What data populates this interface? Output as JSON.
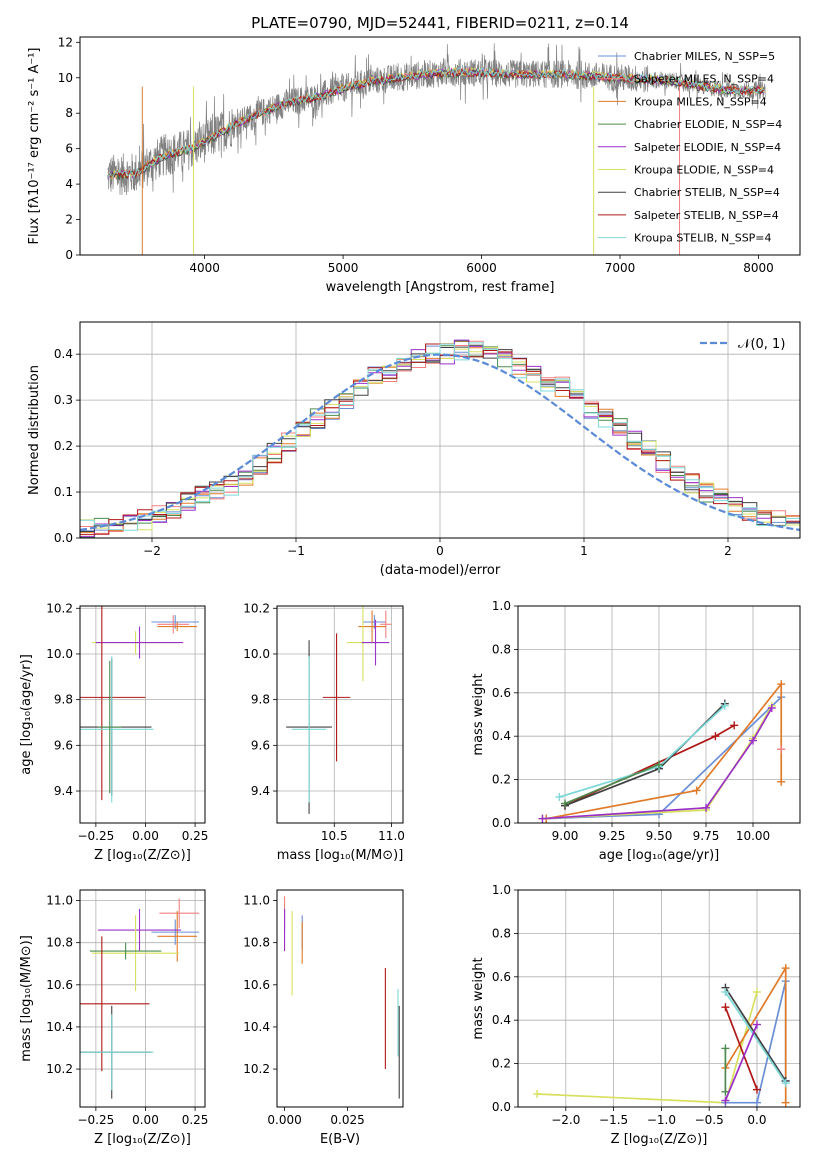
{
  "figure_title": "PLATE=0790, MJD=52441, FIBERID=0211, z=0.14",
  "colors": {
    "chabrier_miles": "#6b8fd6",
    "salpeter_miles": "#f28080",
    "kroupa_miles": "#e07b2a",
    "chabrier_elodie": "#4e8a4e",
    "salpeter_elodie": "#9b30c8",
    "kroupa_elodie": "#d8e060",
    "chabrier_stelib": "#404040",
    "salpeter_stelib": "#b01818",
    "kroupa_stelib": "#7fd8d8",
    "data": "#808080",
    "normal": "#5b8ad6"
  },
  "chart_data": [
    {
      "id": "spectrum",
      "type": "line",
      "title": "PLATE=0790, MJD=52441, FIBERID=0211, z=0.14",
      "xlabel": "wavelength [Angstrom, rest frame]",
      "ylabel": "Flux [fλ10⁻¹⁷ erg cm⁻² s⁻¹ A⁻¹]",
      "xlim": [
        3100,
        8300
      ],
      "ylim": [
        0,
        12.3
      ],
      "xticks": [
        "4000",
        "5000",
        "6000",
        "7000",
        "8000"
      ],
      "yticks": [
        "0",
        "2",
        "4",
        "6",
        "8",
        "10",
        "12"
      ],
      "grid": false,
      "legend_position": "right",
      "legend": [
        {
          "key": "chabrier_miles",
          "label": "Chabrier MILES, N_SSP=5"
        },
        {
          "key": "salpeter_miles",
          "label": "Salpeter MILES, N_SSP=4"
        },
        {
          "key": "kroupa_miles",
          "label": "Kroupa MILES, N_SSP=4"
        },
        {
          "key": "chabrier_elodie",
          "label": "Chabrier ELODIE, N_SSP=4"
        },
        {
          "key": "salpeter_elodie",
          "label": "Salpeter ELODIE, N_SSP=4"
        },
        {
          "key": "kroupa_elodie",
          "label": "Kroupa ELODIE, N_SSP=4"
        },
        {
          "key": "chabrier_stelib",
          "label": "Chabrier STELIB, N_SSP=4"
        },
        {
          "key": "salpeter_stelib",
          "label": "Salpeter STELIB, N_SSP=4"
        },
        {
          "key": "kroupa_stelib",
          "label": "Kroupa STELIB, N_SSP=4"
        }
      ],
      "continuum": {
        "x": [
          3300,
          3500,
          3700,
          3900,
          4000,
          4200,
          4400,
          4600,
          4800,
          5000,
          5200,
          5400,
          5600,
          5800,
          6000,
          6200,
          6400,
          6600,
          6800,
          7000,
          7200,
          7400,
          7600,
          7800,
          8050
        ],
        "y": [
          4.5,
          4.6,
          5.6,
          6.0,
          6.4,
          7.3,
          8.0,
          8.6,
          8.9,
          9.4,
          9.8,
          10.0,
          10.2,
          10.3,
          10.3,
          10.2,
          10.2,
          10.2,
          10.1,
          10.0,
          9.9,
          9.8,
          9.5,
          9.3,
          9.3
        ]
      },
      "spike_lines": [
        {
          "x": 3550,
          "key": "kroupa_miles"
        },
        {
          "x": 3920,
          "key": "kroupa_elodie"
        },
        {
          "x": 6810,
          "key": "kroupa_elodie"
        },
        {
          "x": 7430,
          "key": "salpeter_miles"
        }
      ]
    },
    {
      "id": "residuals",
      "type": "histogram",
      "xlabel": "(data-model)/error",
      "ylabel": "Normed distribution",
      "xlim": [
        -2.5,
        2.5
      ],
      "ylim": [
        0,
        0.47
      ],
      "xticks": [
        -2,
        -1,
        0,
        1,
        2
      ],
      "yticks": [
        0.0,
        0.1,
        0.2,
        0.3,
        0.4
      ],
      "xtick_labels": [
        "−2",
        "−1",
        "0",
        "1",
        "2"
      ],
      "ytick_labels": [
        "0.0",
        "0.1",
        "0.2",
        "0.3",
        "0.4"
      ],
      "grid": true,
      "legend_position": "top-right",
      "legend_label": "𝒩(0, 1)",
      "bin_width": 0.1,
      "base_values": [
        0.02,
        0.025,
        0.03,
        0.035,
        0.04,
        0.05,
        0.065,
        0.08,
        0.09,
        0.1,
        0.115,
        0.135,
        0.16,
        0.185,
        0.21,
        0.235,
        0.26,
        0.28,
        0.3,
        0.33,
        0.35,
        0.36,
        0.38,
        0.39,
        0.4,
        0.4,
        0.41,
        0.41,
        0.4,
        0.39,
        0.37,
        0.36,
        0.34,
        0.33,
        0.31,
        0.28,
        0.26,
        0.24,
        0.215,
        0.19,
        0.165,
        0.14,
        0.12,
        0.1,
        0.085,
        0.07,
        0.055,
        0.045,
        0.04,
        0.035
      ],
      "normal_curve": {
        "mu": 0,
        "sigma": 1
      }
    },
    {
      "id": "z_age",
      "type": "scatter",
      "xlabel": "Z [log₁₀(Z/Z⊙)]",
      "ylabel": "age  [log₁₀(age/yr)]",
      "xlim": [
        -0.33,
        0.3
      ],
      "ylim": [
        9.26,
        10.21
      ],
      "xticks": [
        -0.25,
        0.0,
        0.25
      ],
      "yticks": [
        9.4,
        9.6,
        9.8,
        10.0,
        10.2
      ],
      "xtick_labels": [
        "−0.25",
        "0.00",
        "0.25"
      ],
      "ytick_labels": [
        "9.4",
        "9.6",
        "9.8",
        "10.0",
        "10.2"
      ],
      "grid": true,
      "errorbars": [
        {
          "key": "chabrier_miles",
          "x": 0.15,
          "y": 10.14,
          "xerr": 0.12,
          "yerr": 0.03
        },
        {
          "key": "kroupa_miles",
          "x": 0.16,
          "y": 10.12,
          "xerr": 0.1,
          "yerr": 0.02
        },
        {
          "key": "salpeter_miles",
          "x": 0.14,
          "y": 10.13,
          "xerr": 0.08,
          "yerr": 0.04
        },
        {
          "key": "kroupa_elodie",
          "x": -0.05,
          "y": 10.05,
          "xerr": 0.22,
          "yerr": 0.05
        },
        {
          "key": "salpeter_elodie",
          "x": -0.03,
          "y": 10.05,
          "xerr": 0.22,
          "yerr": 0.07
        },
        {
          "key": "salpeter_stelib",
          "x": -0.22,
          "y": 9.81,
          "xerr": 0.22,
          "yerr": 0.45
        },
        {
          "key": "chabrier_stelib",
          "x": -0.17,
          "y": 9.68,
          "xerr": 0.2,
          "yerr": 0.3
        },
        {
          "key": "kroupa_stelib",
          "x": -0.17,
          "y": 9.67,
          "xerr": 0.21,
          "yerr": 0.32
        },
        {
          "key": "chabrier_elodie",
          "x": -0.18,
          "y": 9.68,
          "xerr": 0.06,
          "yerr": 0.29
        }
      ]
    },
    {
      "id": "mass_age",
      "type": "scatter",
      "xlabel": "mass [log₁₀(M/M⊙)]",
      "ylabel": "",
      "xlim": [
        10.0,
        11.1
      ],
      "ylim": [
        9.26,
        10.21
      ],
      "xticks": [
        10.5,
        11.0
      ],
      "yticks": [
        9.4,
        9.6,
        9.8,
        10.0,
        10.2
      ],
      "xtick_labels": [
        "10.5",
        "11.0"
      ],
      "ytick_labels": [
        "9.4",
        "9.6",
        "9.8",
        "10.0",
        "10.2"
      ],
      "grid": true,
      "errorbars": [
        {
          "key": "chabrier_miles",
          "x": 10.85,
          "y": 10.14,
          "xerr": 0.1,
          "yerr": 0.03
        },
        {
          "key": "salpeter_miles",
          "x": 10.95,
          "y": 10.13,
          "xerr": 0.05,
          "yerr": 0.06
        },
        {
          "key": "kroupa_miles",
          "x": 10.83,
          "y": 10.12,
          "xerr": 0.12,
          "yerr": 0.07
        },
        {
          "key": "kroupa_elodie",
          "x": 10.75,
          "y": 10.05,
          "xerr": 0.14,
          "yerr": 0.17
        },
        {
          "key": "salpeter_elodie",
          "x": 10.86,
          "y": 10.05,
          "xerr": 0.12,
          "yerr": 0.1
        },
        {
          "key": "salpeter_stelib",
          "x": 10.52,
          "y": 9.81,
          "xerr": 0.12,
          "yerr": 0.28
        },
        {
          "key": "chabrier_stelib",
          "x": 10.28,
          "y": 9.68,
          "xerr": 0.2,
          "yerr": 0.38
        },
        {
          "key": "kroupa_stelib",
          "x": 10.28,
          "y": 9.67,
          "xerr": 0.15,
          "yerr": 0.32
        }
      ]
    },
    {
      "id": "age_weight",
      "type": "line",
      "xlabel": "age  [log₁₀(age/yr)]",
      "ylabel": "mass weight",
      "xlim": [
        8.75,
        10.25
      ],
      "ylim": [
        0,
        1.0
      ],
      "xticks": [
        9.0,
        9.25,
        9.5,
        9.75,
        10.0
      ],
      "yticks": [
        0.0,
        0.2,
        0.4,
        0.6,
        0.8,
        1.0
      ],
      "xtick_labels": [
        "9.00",
        "9.25",
        "9.50",
        "9.75",
        "10.00"
      ],
      "ytick_labels": [
        "0.0",
        "0.2",
        "0.4",
        "0.6",
        "0.8",
        "1.0"
      ],
      "grid": true,
      "series": [
        {
          "key": "chabrier_miles",
          "x": [
            8.9,
            9.5,
            10.15
          ],
          "y": [
            0.02,
            0.04,
            0.58
          ]
        },
        {
          "key": "kroupa_miles",
          "x": [
            8.9,
            9.7,
            10.15,
            10.15
          ],
          "y": [
            0.02,
            0.15,
            0.64,
            0.19
          ]
        },
        {
          "key": "salpeter_stelib",
          "x": [
            9.0,
            9.8,
            9.9
          ],
          "y": [
            0.08,
            0.4,
            0.45
          ]
        },
        {
          "key": "chabrier_stelib",
          "x": [
            9.0,
            9.5,
            9.85
          ],
          "y": [
            0.08,
            0.25,
            0.55
          ]
        },
        {
          "key": "kroupa_stelib",
          "x": [
            8.97,
            9.5,
            9.85
          ],
          "y": [
            0.12,
            0.26,
            0.54
          ]
        },
        {
          "key": "chabrier_elodie",
          "x": [
            9.0,
            9.5
          ],
          "y": [
            0.09,
            0.27
          ]
        },
        {
          "key": "kroupa_elodie",
          "x": [
            8.88,
            9.75,
            10.0,
            10.1
          ],
          "y": [
            0.02,
            0.06,
            0.39,
            0.54
          ]
        },
        {
          "key": "salpeter_elodie",
          "x": [
            8.88,
            9.75,
            10.0,
            10.1
          ],
          "y": [
            0.02,
            0.07,
            0.38,
            0.53
          ]
        },
        {
          "key": "salpeter_miles",
          "x": [
            10.15
          ],
          "y": [
            0.34
          ]
        }
      ]
    },
    {
      "id": "z_mass",
      "type": "scatter",
      "xlabel": "Z [log₁₀(Z/Z⊙)]",
      "ylabel": "mass [log₁₀(M/M⊙)]",
      "xlim": [
        -0.33,
        0.3
      ],
      "ylim": [
        10.02,
        11.05
      ],
      "xticks": [
        -0.25,
        0.0,
        0.25
      ],
      "yticks": [
        10.2,
        10.4,
        10.6,
        10.8,
        11.0
      ],
      "xtick_labels": [
        "−0.25",
        "0.00",
        "0.25"
      ],
      "ytick_labels": [
        "10.2",
        "10.4",
        "10.6",
        "10.8",
        "11.0"
      ],
      "grid": true,
      "errorbars": [
        {
          "key": "chabrier_miles",
          "x": 0.15,
          "y": 10.85,
          "xerr": 0.12,
          "yerr": 0.06
        },
        {
          "key": "salpeter_miles",
          "x": 0.17,
          "y": 10.94,
          "xerr": 0.1,
          "yerr": 0.07
        },
        {
          "key": "kroupa_miles",
          "x": 0.16,
          "y": 10.83,
          "xerr": 0.1,
          "yerr": 0.12
        },
        {
          "key": "salpeter_elodie",
          "x": -0.03,
          "y": 10.86,
          "xerr": 0.21,
          "yerr": 0.1
        },
        {
          "key": "kroupa_elodie",
          "x": -0.05,
          "y": 10.75,
          "xerr": 0.22,
          "yerr": 0.18
        },
        {
          "key": "chabrier_elodie",
          "x": -0.1,
          "y": 10.76,
          "xerr": 0.18,
          "yerr": 0.04
        },
        {
          "key": "salpeter_stelib",
          "x": -0.22,
          "y": 10.51,
          "xerr": 0.24,
          "yerr": 0.32
        },
        {
          "key": "chabrier_stelib",
          "x": -0.17,
          "y": 10.28,
          "xerr": 0.2,
          "yerr": 0.22
        },
        {
          "key": "kroupa_stelib",
          "x": -0.17,
          "y": 10.28,
          "xerr": 0.21,
          "yerr": 0.18
        }
      ]
    },
    {
      "id": "ebv_mass",
      "type": "scatter",
      "xlabel": "E(B-V)",
      "ylabel": "",
      "xlim": [
        -0.003,
        0.047
      ],
      "ylim": [
        10.02,
        11.05
      ],
      "xticks": [
        0.0,
        0.025
      ],
      "yticks": [
        10.2,
        10.4,
        10.6,
        10.8,
        11.0
      ],
      "xtick_labels": [
        "0.000",
        "0.025"
      ],
      "ytick_labels": [
        "10.2",
        "10.4",
        "10.6",
        "10.8",
        "11.0"
      ],
      "grid": false,
      "errorbars": [
        {
          "key": "salpeter_miles",
          "x": 0.0,
          "y": 10.94,
          "xerr": 0,
          "yerr": 0.08
        },
        {
          "key": "salpeter_elodie",
          "x": 0.0,
          "y": 10.86,
          "xerr": 0,
          "yerr": 0.1
        },
        {
          "key": "kroupa_elodie",
          "x": 0.003,
          "y": 10.75,
          "xerr": 0,
          "yerr": 0.2
        },
        {
          "key": "chabrier_miles",
          "x": 0.007,
          "y": 10.85,
          "xerr": 0,
          "yerr": 0.08
        },
        {
          "key": "kroupa_miles",
          "x": 0.007,
          "y": 10.8,
          "xerr": 0,
          "yerr": 0.1
        },
        {
          "key": "salpeter_stelib",
          "x": 0.04,
          "y": 10.44,
          "xerr": 0,
          "yerr": 0.24
        },
        {
          "key": "kroupa_stelib",
          "x": 0.045,
          "y": 10.42,
          "xerr": 0,
          "yerr": 0.16
        },
        {
          "key": "chabrier_stelib",
          "x": 0.0455,
          "y": 10.28,
          "xerr": 0,
          "yerr": 0.22
        }
      ]
    },
    {
      "id": "z_weight",
      "type": "line",
      "xlabel": "Z [log₁₀(Z/Z⊙)]",
      "ylabel": "mass weight",
      "xlim": [
        -2.5,
        0.45
      ],
      "ylim": [
        0,
        1.0
      ],
      "xticks": [
        -2.0,
        -1.5,
        -1.0,
        -0.5,
        0.0
      ],
      "yticks": [
        0.0,
        0.2,
        0.4,
        0.6,
        0.8,
        1.0
      ],
      "xtick_labels": [
        "−2.0",
        "−1.5",
        "−1.0",
        "−0.5",
        "0.0"
      ],
      "ytick_labels": [
        "0.0",
        "0.2",
        "0.4",
        "0.6",
        "0.8",
        "1.0"
      ],
      "grid": true,
      "series": [
        {
          "key": "kroupa_elodie",
          "x": [
            -2.3,
            -0.33,
            0.0,
            -0.33
          ],
          "y": [
            0.06,
            0.02,
            0.53,
            0.02
          ]
        },
        {
          "key": "chabrier_miles",
          "x": [
            -0.33,
            0.0,
            0.3,
            0.3
          ],
          "y": [
            0.02,
            0.02,
            0.58,
            0.12
          ]
        },
        {
          "key": "kroupa_miles",
          "x": [
            -0.33,
            0.3,
            0.3
          ],
          "y": [
            0.18,
            0.64,
            0.02
          ]
        },
        {
          "key": "salpeter_stelib",
          "x": [
            -0.33,
            0.0
          ],
          "y": [
            0.46,
            0.08
          ]
        },
        {
          "key": "chabrier_stelib",
          "x": [
            -0.33,
            0.3
          ],
          "y": [
            0.55,
            0.12
          ]
        },
        {
          "key": "kroupa_stelib",
          "x": [
            -0.33,
            0.3
          ],
          "y": [
            0.53,
            0.11
          ]
        },
        {
          "key": "chabrier_elodie",
          "x": [
            -0.33,
            -0.33
          ],
          "y": [
            0.07,
            0.27
          ]
        },
        {
          "key": "salpeter_elodie",
          "x": [
            -0.33,
            0.0
          ],
          "y": [
            0.03,
            0.38
          ]
        }
      ]
    }
  ]
}
